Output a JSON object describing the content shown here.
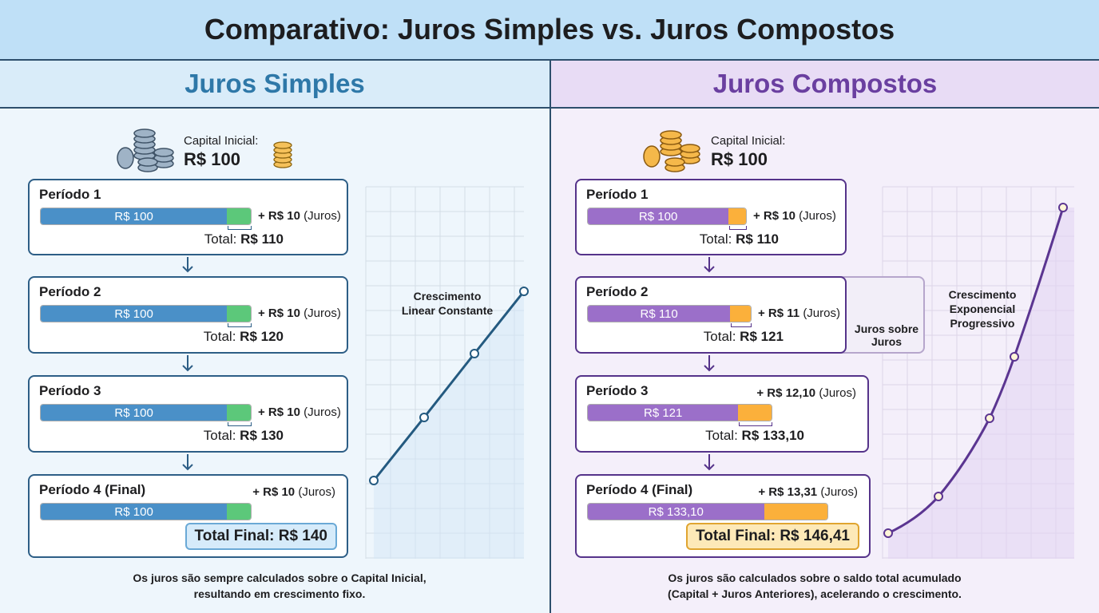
{
  "title": "Comparativo: Juros Simples vs. Juros Compostos",
  "panels": [
    {
      "heading": "Juros Simples",
      "capital_label": "Capital Inicial:",
      "capital_value": "R$ 100",
      "periods": [
        {
          "label": "Período 1",
          "bar": "R$ 100",
          "interest": "+ R$ 10",
          "interest_note": "(Juros)",
          "total_label": "Total:",
          "total": "R$ 110"
        },
        {
          "label": "Período 2",
          "bar": "R$ 100",
          "interest": "+ R$ 10",
          "interest_note": "(Juros)",
          "total_label": "Total:",
          "total": "R$ 120"
        },
        {
          "label": "Período 3",
          "bar": "R$ 100",
          "interest": "+ R$ 10",
          "interest_note": "(Juros)",
          "total_label": "Total:",
          "total": "R$ 130"
        },
        {
          "label": "Período 4 (Final)",
          "bar": "R$ 100",
          "interest": "+ R$ 10",
          "interest_note": "(Juros)",
          "total_label": "Total Final:",
          "total": "R$ 140"
        }
      ],
      "chart_label": [
        "Crescimento",
        "Linear Constante"
      ],
      "footer": [
        "Os juros são sempre calculados sobre o Capital Inicial,",
        "resultando em crescimento fixo."
      ]
    },
    {
      "heading": "Juros Compostos",
      "capital_label": "Capital Inicial:",
      "capital_value": "R$ 100",
      "periods": [
        {
          "label": "Período 1",
          "bar": "R$ 100",
          "interest": "+ R$ 10",
          "interest_note": "(Juros)",
          "total_label": "Total:",
          "total": "R$ 110"
        },
        {
          "label": "Período 2",
          "bar": "R$ 110",
          "interest": "+ R$ 11",
          "interest_note": "(Juros)",
          "total_label": "Total:",
          "total": "R$ 121"
        },
        {
          "label": "Período 3",
          "bar": "R$ 121",
          "interest": "+ R$ 12,10",
          "interest_note": "(Juros)",
          "total_label": "Total:",
          "total": "R$ 133,10"
        },
        {
          "label": "Período 4 (Final)",
          "bar": "R$ 133,10",
          "interest": "+ R$ 13,31",
          "interest_note": "(Juros)",
          "total_label": "Total Final:",
          "total": "R$ 146,41"
        }
      ],
      "chart_label": [
        "Crescimento",
        "Exponencial",
        "Progressivo"
      ],
      "callout": [
        "Juros sobre",
        "Juros"
      ],
      "footer": [
        "Os juros são calculados sobre o saldo total acumulado",
        "(Capital + Juros Anteriores), acelerando o crescimento."
      ]
    }
  ]
}
